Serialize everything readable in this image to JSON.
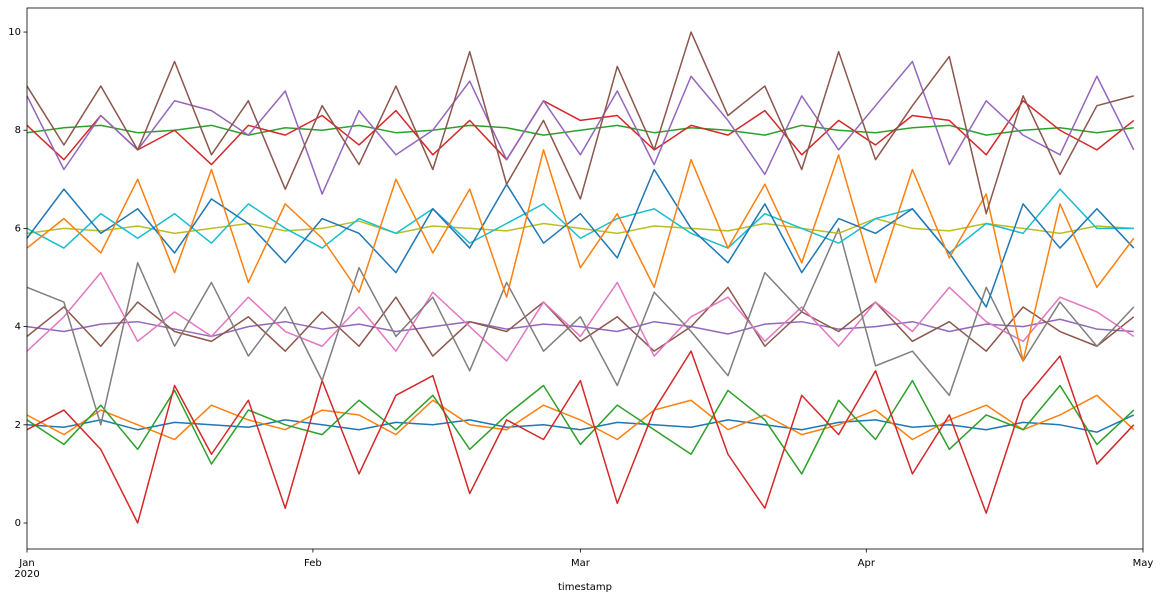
{
  "chart_data": {
    "type": "line",
    "x_label": "timestamp",
    "x_sublabel": "2020",
    "x": [
      0,
      4,
      8,
      12,
      16,
      20,
      24,
      28,
      32,
      36,
      40,
      44,
      48,
      52,
      56,
      60,
      64,
      68,
      72,
      76,
      80,
      84,
      88,
      92,
      96,
      100,
      104,
      108,
      112,
      116,
      120
    ],
    "xlim": [
      0,
      121
    ],
    "xticks": [
      {
        "value": 0,
        "label": "Jan"
      },
      {
        "value": 31,
        "label": "Feb"
      },
      {
        "value": 60,
        "label": "Mar"
      },
      {
        "value": 91,
        "label": "Apr"
      },
      {
        "value": 121,
        "label": "May"
      }
    ],
    "ylim": [
      -0.53,
      10.49
    ],
    "yticks": [
      0,
      2,
      4,
      6,
      8,
      10
    ],
    "grid": false,
    "series": [
      {
        "color": "#1f77b4",
        "values": [
          2.0,
          1.95,
          2.1,
          1.9,
          2.05,
          2.0,
          1.95,
          2.1,
          2.0,
          1.9,
          2.05,
          2.0,
          2.1,
          1.95,
          2.0,
          1.9,
          2.05,
          2.0,
          1.95,
          2.1,
          2.0,
          1.9,
          2.05,
          2.1,
          1.95,
          2.0,
          1.9,
          2.05,
          2.0,
          1.85,
          2.2
        ]
      },
      {
        "color": "#ff7f0e",
        "values": [
          2.2,
          1.8,
          2.3,
          2.0,
          1.7,
          2.4,
          2.1,
          1.9,
          2.3,
          2.2,
          1.8,
          2.5,
          2.0,
          1.9,
          2.4,
          2.1,
          1.7,
          2.3,
          2.5,
          1.9,
          2.2,
          1.8,
          2.0,
          2.3,
          1.7,
          2.1,
          2.4,
          1.9,
          2.2,
          2.6,
          1.9
        ]
      },
      {
        "color": "#2ca02c",
        "values": [
          2.1,
          1.6,
          2.4,
          1.5,
          2.7,
          1.2,
          2.3,
          2.0,
          1.8,
          2.5,
          1.9,
          2.6,
          1.5,
          2.2,
          2.8,
          1.6,
          2.4,
          1.9,
          1.4,
          2.7,
          2.1,
          1.0,
          2.5,
          1.7,
          2.9,
          1.5,
          2.2,
          1.9,
          2.8,
          1.6,
          2.3
        ]
      },
      {
        "color": "#d62728",
        "values": [
          1.9,
          2.3,
          1.5,
          0.0,
          2.8,
          1.4,
          2.5,
          0.3,
          2.9,
          1.0,
          2.6,
          3.0,
          0.6,
          2.1,
          1.7,
          2.9,
          0.4,
          2.3,
          3.5,
          1.4,
          0.3,
          2.6,
          1.8,
          3.1,
          1.0,
          2.2,
          0.2,
          2.5,
          3.4,
          1.2,
          2.0
        ]
      },
      {
        "color": "#9467bd",
        "values": [
          4.0,
          3.9,
          4.05,
          4.1,
          3.95,
          3.8,
          4.0,
          4.1,
          3.95,
          4.05,
          3.9,
          4.0,
          4.1,
          3.95,
          4.05,
          4.0,
          3.9,
          4.1,
          4.0,
          3.85,
          4.05,
          4.1,
          3.95,
          4.0,
          4.1,
          3.9,
          4.05,
          4.0,
          4.15,
          3.95,
          3.9
        ]
      },
      {
        "color": "#8c564b",
        "values": [
          3.8,
          4.4,
          3.6,
          4.5,
          3.9,
          3.7,
          4.2,
          3.5,
          4.3,
          3.6,
          4.6,
          3.4,
          4.1,
          3.9,
          4.5,
          3.7,
          4.2,
          3.5,
          4.0,
          4.8,
          3.6,
          4.3,
          3.9,
          4.5,
          3.7,
          4.1,
          3.5,
          4.4,
          3.9,
          3.6,
          4.2
        ]
      },
      {
        "color": "#e377c2",
        "values": [
          3.5,
          4.2,
          5.1,
          3.7,
          4.3,
          3.8,
          4.6,
          3.9,
          3.6,
          4.4,
          3.5,
          4.7,
          4.0,
          3.3,
          4.5,
          3.8,
          4.9,
          3.4,
          4.2,
          4.6,
          3.7,
          4.4,
          3.6,
          4.5,
          3.9,
          4.8,
          4.1,
          3.7,
          4.6,
          4.3,
          3.8
        ]
      },
      {
        "color": "#7f7f7f",
        "values": [
          4.8,
          4.5,
          2.0,
          5.3,
          3.6,
          4.9,
          3.4,
          4.4,
          2.9,
          5.2,
          3.8,
          4.6,
          3.1,
          4.9,
          3.5,
          4.2,
          2.8,
          4.7,
          3.9,
          3.0,
          5.1,
          4.3,
          6.0,
          3.2,
          3.5,
          2.6,
          4.8,
          3.3,
          4.5,
          3.6,
          4.4
        ]
      },
      {
        "color": "#bcbd22",
        "values": [
          5.9,
          6.0,
          5.95,
          6.05,
          5.9,
          6.0,
          6.1,
          5.95,
          6.0,
          6.15,
          5.9,
          6.05,
          6.0,
          5.95,
          6.1,
          6.0,
          5.9,
          6.05,
          6.0,
          5.95,
          6.1,
          6.0,
          5.9,
          6.2,
          6.0,
          5.95,
          6.1,
          6.0,
          5.9,
          6.05,
          6.0
        ]
      },
      {
        "color": "#17becf",
        "values": [
          6.0,
          5.6,
          6.3,
          5.8,
          6.3,
          5.7,
          6.5,
          6.0,
          5.6,
          6.2,
          5.9,
          6.4,
          5.7,
          6.1,
          6.5,
          5.8,
          6.2,
          6.4,
          5.9,
          5.6,
          6.3,
          6.0,
          5.7,
          6.2,
          6.4,
          5.5,
          6.1,
          5.9,
          6.8,
          6.0,
          6.0
        ]
      },
      {
        "color": "#1f77b4",
        "values": [
          5.8,
          6.8,
          5.9,
          6.4,
          5.5,
          6.6,
          6.1,
          5.3,
          6.2,
          5.9,
          5.1,
          6.4,
          5.6,
          6.9,
          5.7,
          6.3,
          5.4,
          7.2,
          6.0,
          5.3,
          6.5,
          5.1,
          6.2,
          5.9,
          6.4,
          5.5,
          4.4,
          6.5,
          5.6,
          6.4,
          5.6
        ]
      },
      {
        "color": "#ff7f0e",
        "values": [
          5.6,
          6.2,
          5.5,
          7.0,
          5.1,
          7.2,
          4.9,
          6.5,
          5.8,
          4.7,
          7.0,
          5.5,
          6.8,
          4.6,
          7.6,
          5.2,
          6.3,
          4.8,
          7.4,
          5.6,
          6.9,
          5.3,
          7.5,
          4.9,
          7.2,
          5.4,
          6.7,
          3.3,
          6.5,
          4.8,
          5.8
        ]
      },
      {
        "color": "#2ca02c",
        "values": [
          7.95,
          8.05,
          8.1,
          7.95,
          8.0,
          8.1,
          7.9,
          8.05,
          8.0,
          8.1,
          7.95,
          8.0,
          8.1,
          8.05,
          7.9,
          8.0,
          8.1,
          7.95,
          8.05,
          8.0,
          7.9,
          8.1,
          8.0,
          7.95,
          8.05,
          8.1,
          7.9,
          8.0,
          8.05,
          7.95,
          8.05
        ]
      },
      {
        "color": "#d62728",
        "values": [
          8.1,
          7.4,
          8.3,
          7.6,
          8.0,
          7.3,
          8.1,
          7.9,
          8.3,
          7.7,
          8.4,
          7.5,
          8.2,
          7.4,
          8.6,
          8.2,
          8.3,
          7.6,
          8.1,
          7.9,
          8.4,
          7.5,
          8.2,
          7.7,
          8.3,
          8.2,
          7.5,
          8.6,
          8.0,
          7.6,
          8.2
        ]
      },
      {
        "color": "#9467bd",
        "values": [
          8.7,
          7.2,
          8.3,
          7.6,
          8.6,
          8.4,
          7.9,
          8.8,
          6.7,
          8.4,
          7.5,
          8.0,
          9.0,
          7.4,
          8.6,
          7.5,
          8.8,
          7.3,
          9.1,
          8.2,
          7.1,
          8.7,
          7.6,
          8.5,
          9.4,
          7.3,
          8.6,
          7.9,
          7.5,
          9.1,
          7.6
        ]
      },
      {
        "color": "#8c564b",
        "values": [
          8.9,
          7.7,
          8.9,
          7.6,
          9.4,
          7.5,
          8.6,
          6.8,
          8.5,
          7.3,
          8.9,
          7.2,
          9.6,
          6.9,
          8.2,
          6.6,
          9.3,
          7.6,
          10.0,
          8.3,
          8.9,
          7.2,
          9.6,
          7.4,
          8.5,
          9.5,
          6.3,
          8.7,
          7.1,
          8.5,
          8.7
        ]
      }
    ]
  }
}
